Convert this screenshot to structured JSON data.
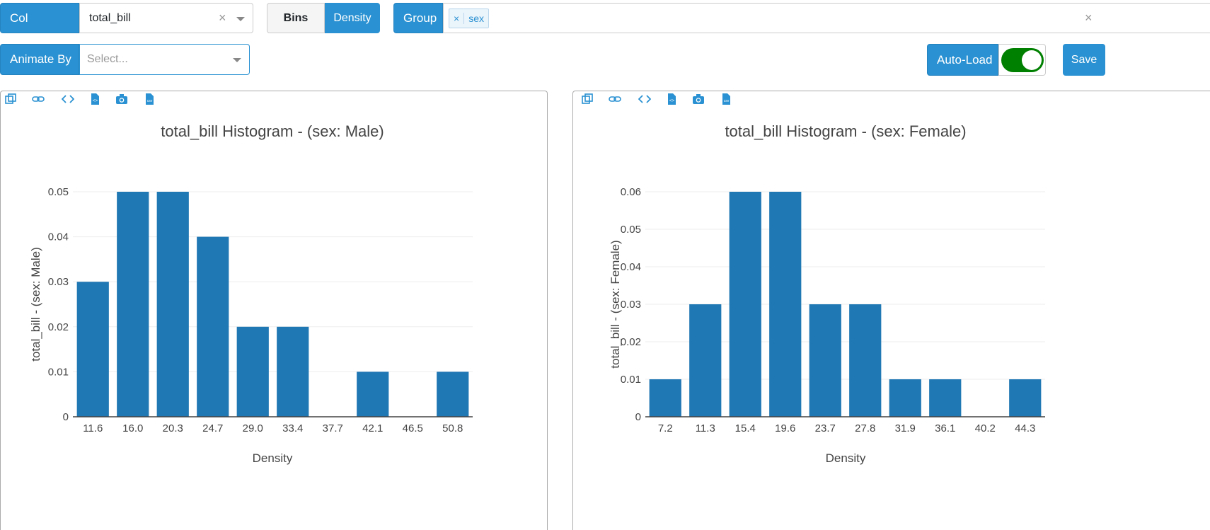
{
  "toolbar": {
    "col_label": "Col",
    "col_value": "total_bill",
    "bins_label": "Bins",
    "density_label": "Density",
    "group_label": "Group",
    "group_tag": "sex",
    "animate_label": "Animate By",
    "animate_placeholder": "Select...",
    "autoload_label": "Auto-Load",
    "autoload_on": true,
    "save_label": "Save"
  },
  "icons": [
    "copy-icon",
    "link-icon",
    "code-icon",
    "file-code-icon",
    "camera-icon",
    "csv-icon"
  ],
  "colors": {
    "accent": "#2a91d2",
    "bar": "#1f77b4",
    "toggle": "#008000"
  },
  "chart_data": [
    {
      "type": "bar",
      "title": "total_bill Histogram - (sex: Male)",
      "xlabel": "Density",
      "ylabel": "total_bill - (sex: Male)",
      "categories": [
        "11.6",
        "16.0",
        "20.3",
        "24.7",
        "29.0",
        "33.4",
        "37.7",
        "42.1",
        "46.5",
        "50.8"
      ],
      "values": [
        0.03,
        0.05,
        0.05,
        0.04,
        0.02,
        0.02,
        0,
        0.01,
        0,
        0.01
      ],
      "ylim": [
        0,
        0.05
      ],
      "yticks": [
        "0",
        "0.01",
        "0.02",
        "0.03",
        "0.04",
        "0.05"
      ],
      "ytick_values": [
        0,
        0.01,
        0.02,
        0.03,
        0.04,
        0.05
      ]
    },
    {
      "type": "bar",
      "title": "total_bill Histogram - (sex: Female)",
      "xlabel": "Density",
      "ylabel": "total_bill - (sex: Female)",
      "categories": [
        "7.2",
        "11.3",
        "15.4",
        "19.6",
        "23.7",
        "27.8",
        "31.9",
        "36.1",
        "40.2",
        "44.3"
      ],
      "values": [
        0.01,
        0.03,
        0.06,
        0.06,
        0.03,
        0.03,
        0.01,
        0.01,
        0,
        0.01
      ],
      "ylim": [
        0,
        0.06
      ],
      "yticks": [
        "0",
        "0.01",
        "0.02",
        "0.03",
        "0.04",
        "0.05",
        "0.06"
      ],
      "ytick_values": [
        0,
        0.01,
        0.02,
        0.03,
        0.04,
        0.05,
        0.06
      ]
    }
  ]
}
